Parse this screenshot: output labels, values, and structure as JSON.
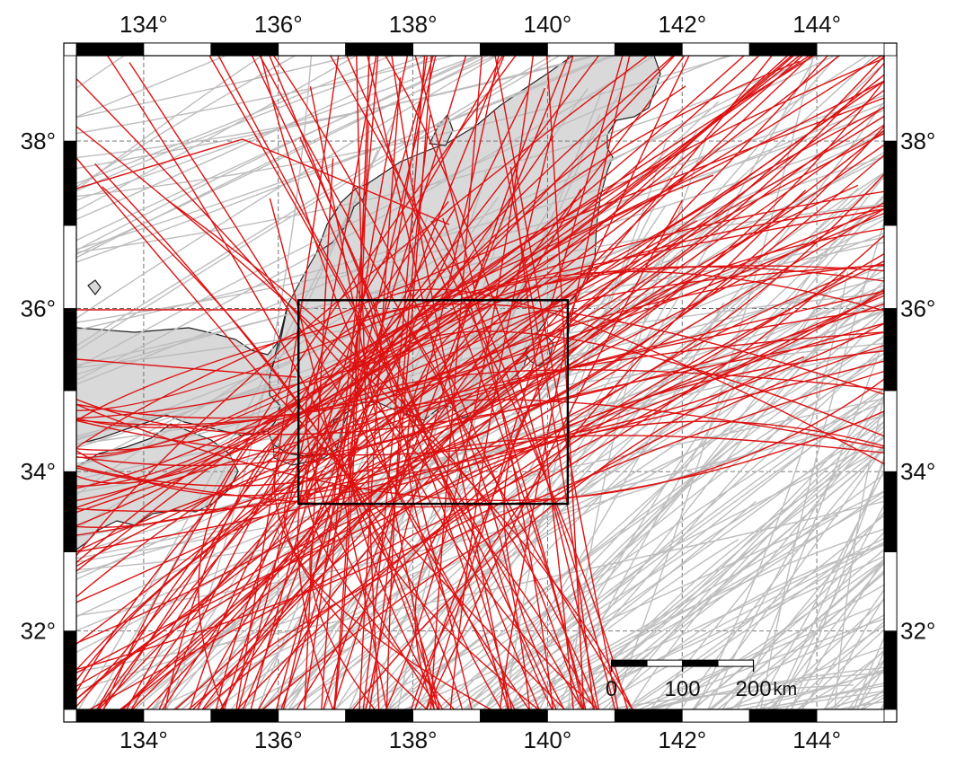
{
  "map": {
    "lon_range": [
      133,
      145
    ],
    "lat_range": [
      31,
      39
    ],
    "projection": "mercator",
    "land_color": "#d9d9d9",
    "sea_color": "#ffffff",
    "gray_track_color": "#bdbdbd",
    "red_track_color": "#dd1111",
    "lon_ticks": [
      {
        "value": 134,
        "label": "134°"
      },
      {
        "value": 136,
        "label": "136°"
      },
      {
        "value": 138,
        "label": "138°"
      },
      {
        "value": 140,
        "label": "140°"
      },
      {
        "value": 142,
        "label": "142°"
      },
      {
        "value": 144,
        "label": "144°"
      }
    ],
    "lat_ticks": [
      {
        "value": 32,
        "label": "32°"
      },
      {
        "value": 34,
        "label": "34°"
      },
      {
        "value": 36,
        "label": "36°"
      },
      {
        "value": 38,
        "label": "38°"
      }
    ],
    "study_box": {
      "lon": [
        136.3,
        140.3
      ],
      "lat": [
        33.6,
        36.1
      ]
    },
    "scale_bar": {
      "labels": [
        "0",
        "100",
        "200"
      ],
      "unit": "km",
      "length_km": 200,
      "lon_start": 140.95,
      "lat": 31.55
    }
  }
}
